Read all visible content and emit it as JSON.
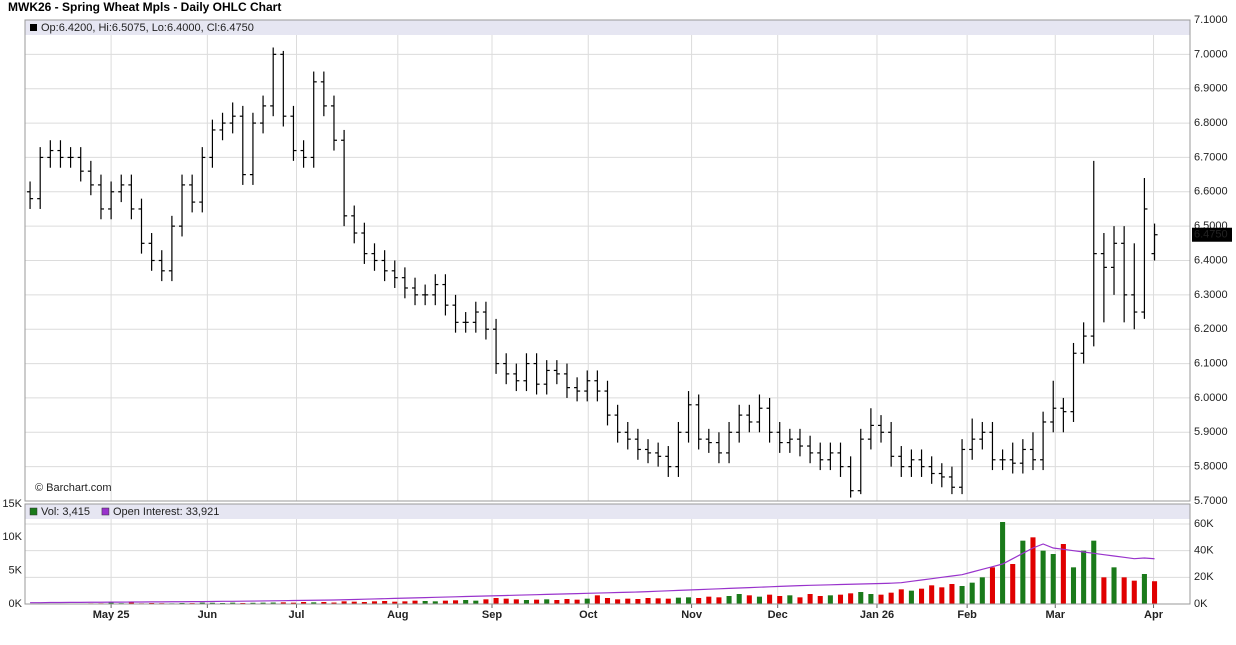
{
  "chart_data": [
    {
      "type": "ohlc",
      "title": "MWK26 - Spring Wheat Mpls - Daily OHLC Chart",
      "info": "Op:6.4200, Hi:6.5075, Lo:6.4000, Cl:6.4750",
      "credit": "© Barchart.com",
      "last_label": "6.4750",
      "color": "#000000",
      "band_color": "#e6e6f2",
      "grid": true,
      "ylim": [
        5.7,
        7.1
      ],
      "yticks": [
        {
          "value": 5.7,
          "label": "5.7000"
        },
        {
          "value": 5.8,
          "label": "5.8000"
        },
        {
          "value": 5.9,
          "label": "5.9000"
        },
        {
          "value": 6.0,
          "label": "6.0000"
        },
        {
          "value": 6.1,
          "label": "6.1000"
        },
        {
          "value": 6.2,
          "label": "6.2000"
        },
        {
          "value": 6.3,
          "label": "6.3000"
        },
        {
          "value": 6.4,
          "label": "6.4000"
        },
        {
          "value": 6.5,
          "label": "6.5000"
        },
        {
          "value": 6.6,
          "label": "6.6000"
        },
        {
          "value": 6.7,
          "label": "6.7000"
        },
        {
          "value": 6.8,
          "label": "6.8000"
        },
        {
          "value": 6.9,
          "label": "6.9000"
        },
        {
          "value": 7.0,
          "label": "7.0000"
        },
        {
          "value": 7.1,
          "label": "7.1000"
        }
      ],
      "open": [
        6.6,
        6.58,
        6.7,
        6.72,
        6.7,
        6.7,
        6.66,
        6.62,
        6.55,
        6.6,
        6.62,
        6.55,
        6.45,
        6.4,
        6.37,
        6.5,
        6.62,
        6.57,
        6.7,
        6.78,
        6.8,
        6.82,
        6.65,
        6.8,
        6.85,
        7.0,
        6.82,
        6.72,
        6.7,
        6.92,
        6.85,
        6.75,
        6.53,
        6.48,
        6.42,
        6.4,
        6.37,
        6.35,
        6.32,
        6.3,
        6.3,
        6.33,
        6.27,
        6.22,
        6.22,
        6.25,
        6.2,
        6.1,
        6.07,
        6.05,
        6.1,
        6.04,
        6.08,
        6.07,
        6.03,
        6.02,
        6.05,
        6.02,
        5.95,
        5.9,
        5.88,
        5.85,
        5.84,
        5.83,
        5.8,
        5.9,
        5.98,
        5.88,
        5.87,
        5.84,
        5.9,
        5.95,
        5.93,
        5.97,
        5.9,
        5.87,
        5.88,
        5.86,
        5.84,
        5.82,
        5.84,
        5.8,
        5.73,
        5.88,
        5.92,
        5.9,
        5.83,
        5.8,
        5.82,
        5.8,
        5.78,
        5.77,
        5.74,
        5.85,
        5.88,
        5.9,
        5.82,
        5.82,
        5.81,
        5.85,
        5.82,
        5.93,
        5.97,
        5.96,
        6.13,
        6.18,
        6.42,
        6.38,
        6.45,
        6.3,
        6.25,
        6.42
      ],
      "high": [
        6.63,
        6.73,
        6.75,
        6.75,
        6.73,
        6.73,
        6.69,
        6.65,
        6.63,
        6.65,
        6.65,
        6.58,
        6.48,
        6.43,
        6.53,
        6.65,
        6.65,
        6.73,
        6.81,
        6.83,
        6.86,
        6.85,
        6.83,
        6.88,
        7.02,
        7.01,
        6.85,
        6.75,
        6.95,
        6.95,
        6.88,
        6.78,
        6.56,
        6.51,
        6.45,
        6.43,
        6.4,
        6.38,
        6.35,
        6.33,
        6.36,
        6.36,
        6.3,
        6.25,
        6.28,
        6.28,
        6.23,
        6.13,
        6.1,
        6.13,
        6.13,
        6.11,
        6.11,
        6.1,
        6.06,
        6.08,
        6.08,
        6.05,
        5.98,
        5.93,
        5.91,
        5.88,
        5.87,
        5.86,
        5.93,
        6.02,
        6.01,
        5.91,
        5.9,
        5.93,
        5.98,
        5.98,
        6.01,
        6.0,
        5.93,
        5.91,
        5.91,
        5.89,
        5.87,
        5.87,
        5.87,
        5.83,
        5.91,
        5.97,
        5.95,
        5.93,
        5.86,
        5.85,
        5.85,
        5.83,
        5.81,
        5.8,
        5.88,
        5.94,
        5.93,
        5.93,
        5.85,
        5.87,
        5.88,
        5.9,
        5.96,
        6.05,
        6.0,
        6.16,
        6.22,
        6.69,
        6.48,
        6.5,
        6.5,
        6.45,
        6.64,
        6.5075
      ],
      "low": [
        6.55,
        6.55,
        6.67,
        6.67,
        6.67,
        6.63,
        6.59,
        6.52,
        6.52,
        6.57,
        6.52,
        6.42,
        6.37,
        6.34,
        6.34,
        6.47,
        6.54,
        6.54,
        6.67,
        6.75,
        6.77,
        6.62,
        6.62,
        6.77,
        6.82,
        6.79,
        6.69,
        6.67,
        6.67,
        6.82,
        6.72,
        6.5,
        6.45,
        6.39,
        6.37,
        6.34,
        6.32,
        6.29,
        6.27,
        6.27,
        6.27,
        6.24,
        6.19,
        6.19,
        6.19,
        6.17,
        6.07,
        6.04,
        6.02,
        6.02,
        6.01,
        6.01,
        6.04,
        6.0,
        5.99,
        5.99,
        5.99,
        5.92,
        5.87,
        5.85,
        5.82,
        5.81,
        5.8,
        5.77,
        5.77,
        5.87,
        5.85,
        5.84,
        5.81,
        5.81,
        5.87,
        5.9,
        5.9,
        5.87,
        5.84,
        5.84,
        5.83,
        5.81,
        5.79,
        5.79,
        5.77,
        5.71,
        5.72,
        5.85,
        5.87,
        5.8,
        5.77,
        5.77,
        5.77,
        5.75,
        5.74,
        5.72,
        5.72,
        5.82,
        5.85,
        5.79,
        5.79,
        5.78,
        5.78,
        5.79,
        5.79,
        5.9,
        5.9,
        5.93,
        6.1,
        6.15,
        6.22,
        6.3,
        6.22,
        6.2,
        6.23,
        6.4
      ],
      "close": [
        6.58,
        6.7,
        6.72,
        6.7,
        6.7,
        6.66,
        6.62,
        6.55,
        6.6,
        6.62,
        6.55,
        6.45,
        6.4,
        6.37,
        6.5,
        6.62,
        6.57,
        6.7,
        6.78,
        6.8,
        6.82,
        6.65,
        6.8,
        6.85,
        7.0,
        6.82,
        6.72,
        6.7,
        6.92,
        6.85,
        6.75,
        6.53,
        6.48,
        6.42,
        6.4,
        6.37,
        6.35,
        6.32,
        6.3,
        6.3,
        6.33,
        6.27,
        6.22,
        6.22,
        6.25,
        6.2,
        6.1,
        6.07,
        6.05,
        6.1,
        6.04,
        6.08,
        6.07,
        6.03,
        6.02,
        6.05,
        6.02,
        5.95,
        5.9,
        5.88,
        5.85,
        5.84,
        5.83,
        5.8,
        5.9,
        5.98,
        5.88,
        5.87,
        5.84,
        5.9,
        5.95,
        5.93,
        5.97,
        5.9,
        5.87,
        5.88,
        5.86,
        5.84,
        5.82,
        5.84,
        5.8,
        5.73,
        5.88,
        5.92,
        5.9,
        5.83,
        5.8,
        5.82,
        5.8,
        5.78,
        5.77,
        5.74,
        5.85,
        5.88,
        5.9,
        5.82,
        5.82,
        5.81,
        5.85,
        5.82,
        5.93,
        5.97,
        5.96,
        6.13,
        6.18,
        6.42,
        6.38,
        6.45,
        6.3,
        6.25,
        6.55,
        6.475
      ]
    },
    {
      "type": "bar",
      "band_color": "#e6e6f2",
      "grid": true,
      "xlim": [
        -0.5,
        114.5
      ],
      "xticks": [
        {
          "value": 8,
          "label": "May 25"
        },
        {
          "value": 17.5,
          "label": "Jun"
        },
        {
          "value": 26.3,
          "label": "Jul"
        },
        {
          "value": 36.3,
          "label": "Aug"
        },
        {
          "value": 45.6,
          "label": "Sep"
        },
        {
          "value": 55.1,
          "label": "Oct"
        },
        {
          "value": 65.3,
          "label": "Nov"
        },
        {
          "value": 73.8,
          "label": "Dec"
        },
        {
          "value": 83.6,
          "label": "Jan 26"
        },
        {
          "value": 92.5,
          "label": "Feb"
        },
        {
          "value": 101.2,
          "label": "Mar"
        },
        {
          "value": 110.9,
          "label": "Apr"
        }
      ],
      "ylim": [
        0,
        15000
      ],
      "yticks": [
        {
          "value": 0,
          "label": "0K"
        },
        {
          "value": 5000,
          "label": "5K"
        },
        {
          "value": 10000,
          "label": "10K"
        },
        {
          "value": 15000,
          "label": "15K"
        }
      ],
      "y2lim": [
        0,
        75000
      ],
      "y2ticks": [
        {
          "value": 0,
          "label": "0K"
        },
        {
          "value": 20000,
          "label": "20K"
        },
        {
          "value": 40000,
          "label": "40K"
        },
        {
          "value": 60000,
          "label": "60K"
        }
      ],
      "series": [
        {
          "name": "Vol: 3,415",
          "color": "#1a7a1a",
          "down_color": "#e00000",
          "values": [
            50,
            80,
            60,
            40,
            70,
            60,
            90,
            100,
            300,
            120,
            250,
            100,
            150,
            120,
            100,
            150,
            130,
            200,
            180,
            150,
            200,
            150,
            180,
            200,
            220,
            250,
            200,
            300,
            250,
            300,
            220,
            400,
            350,
            300,
            400,
            450,
            350,
            400,
            500,
            450,
            400,
            500,
            550,
            600,
            500,
            700,
            900,
            800,
            700,
            600,
            650,
            700,
            600,
            750,
            650,
            800,
            1300,
            900,
            700,
            800,
            750,
            900,
            850,
            800,
            950,
            1000,
            900,
            1100,
            1000,
            1200,
            1500,
            1300,
            1100,
            1400,
            1200,
            1300,
            1000,
            1500,
            1200,
            1300,
            1400,
            1600,
            1800,
            1500,
            1400,
            1700,
            2200,
            2000,
            2300,
            2800,
            2500,
            3000,
            2700,
            3200,
            4000,
            5500,
            12300,
            6000,
            9500,
            10000,
            8000,
            7500,
            9000,
            5500,
            8000,
            9500,
            4000,
            5500,
            4000,
            3500,
            4500,
            3415
          ]
        },
        {
          "name": "Open Interest: 33,921",
          "color": "#9933cc",
          "axis": "y2",
          "values": [
            1000,
            1000,
            1100,
            1100,
            1200,
            1200,
            1300,
            1300,
            1400,
            1400,
            1500,
            1500,
            1600,
            1600,
            1700,
            1700,
            1800,
            1800,
            1900,
            2000,
            2000,
            2100,
            2200,
            2300,
            2400,
            2500,
            2600,
            2700,
            2800,
            2900,
            3000,
            3200,
            3400,
            3600,
            3800,
            4000,
            4200,
            4400,
            4600,
            4800,
            5000,
            5200,
            5400,
            5600,
            5800,
            6000,
            6200,
            6400,
            6600,
            6800,
            7000,
            7200,
            7400,
            7600,
            7800,
            8000,
            8200,
            8400,
            8600,
            8800,
            9000,
            9300,
            9600,
            9900,
            10200,
            10500,
            10800,
            11100,
            11400,
            11700,
            12000,
            12300,
            12600,
            12900,
            13200,
            13500,
            13800,
            14000,
            14200,
            14400,
            14600,
            14800,
            15000,
            15200,
            15400,
            15600,
            16000,
            17000,
            18000,
            19000,
            20000,
            21000,
            22000,
            24000,
            26000,
            28000,
            30000,
            34000,
            38000,
            42000,
            45000,
            42000,
            41000,
            40000,
            39000,
            38000,
            37000,
            36000,
            35000,
            34000,
            34500,
            33921
          ]
        }
      ]
    }
  ]
}
